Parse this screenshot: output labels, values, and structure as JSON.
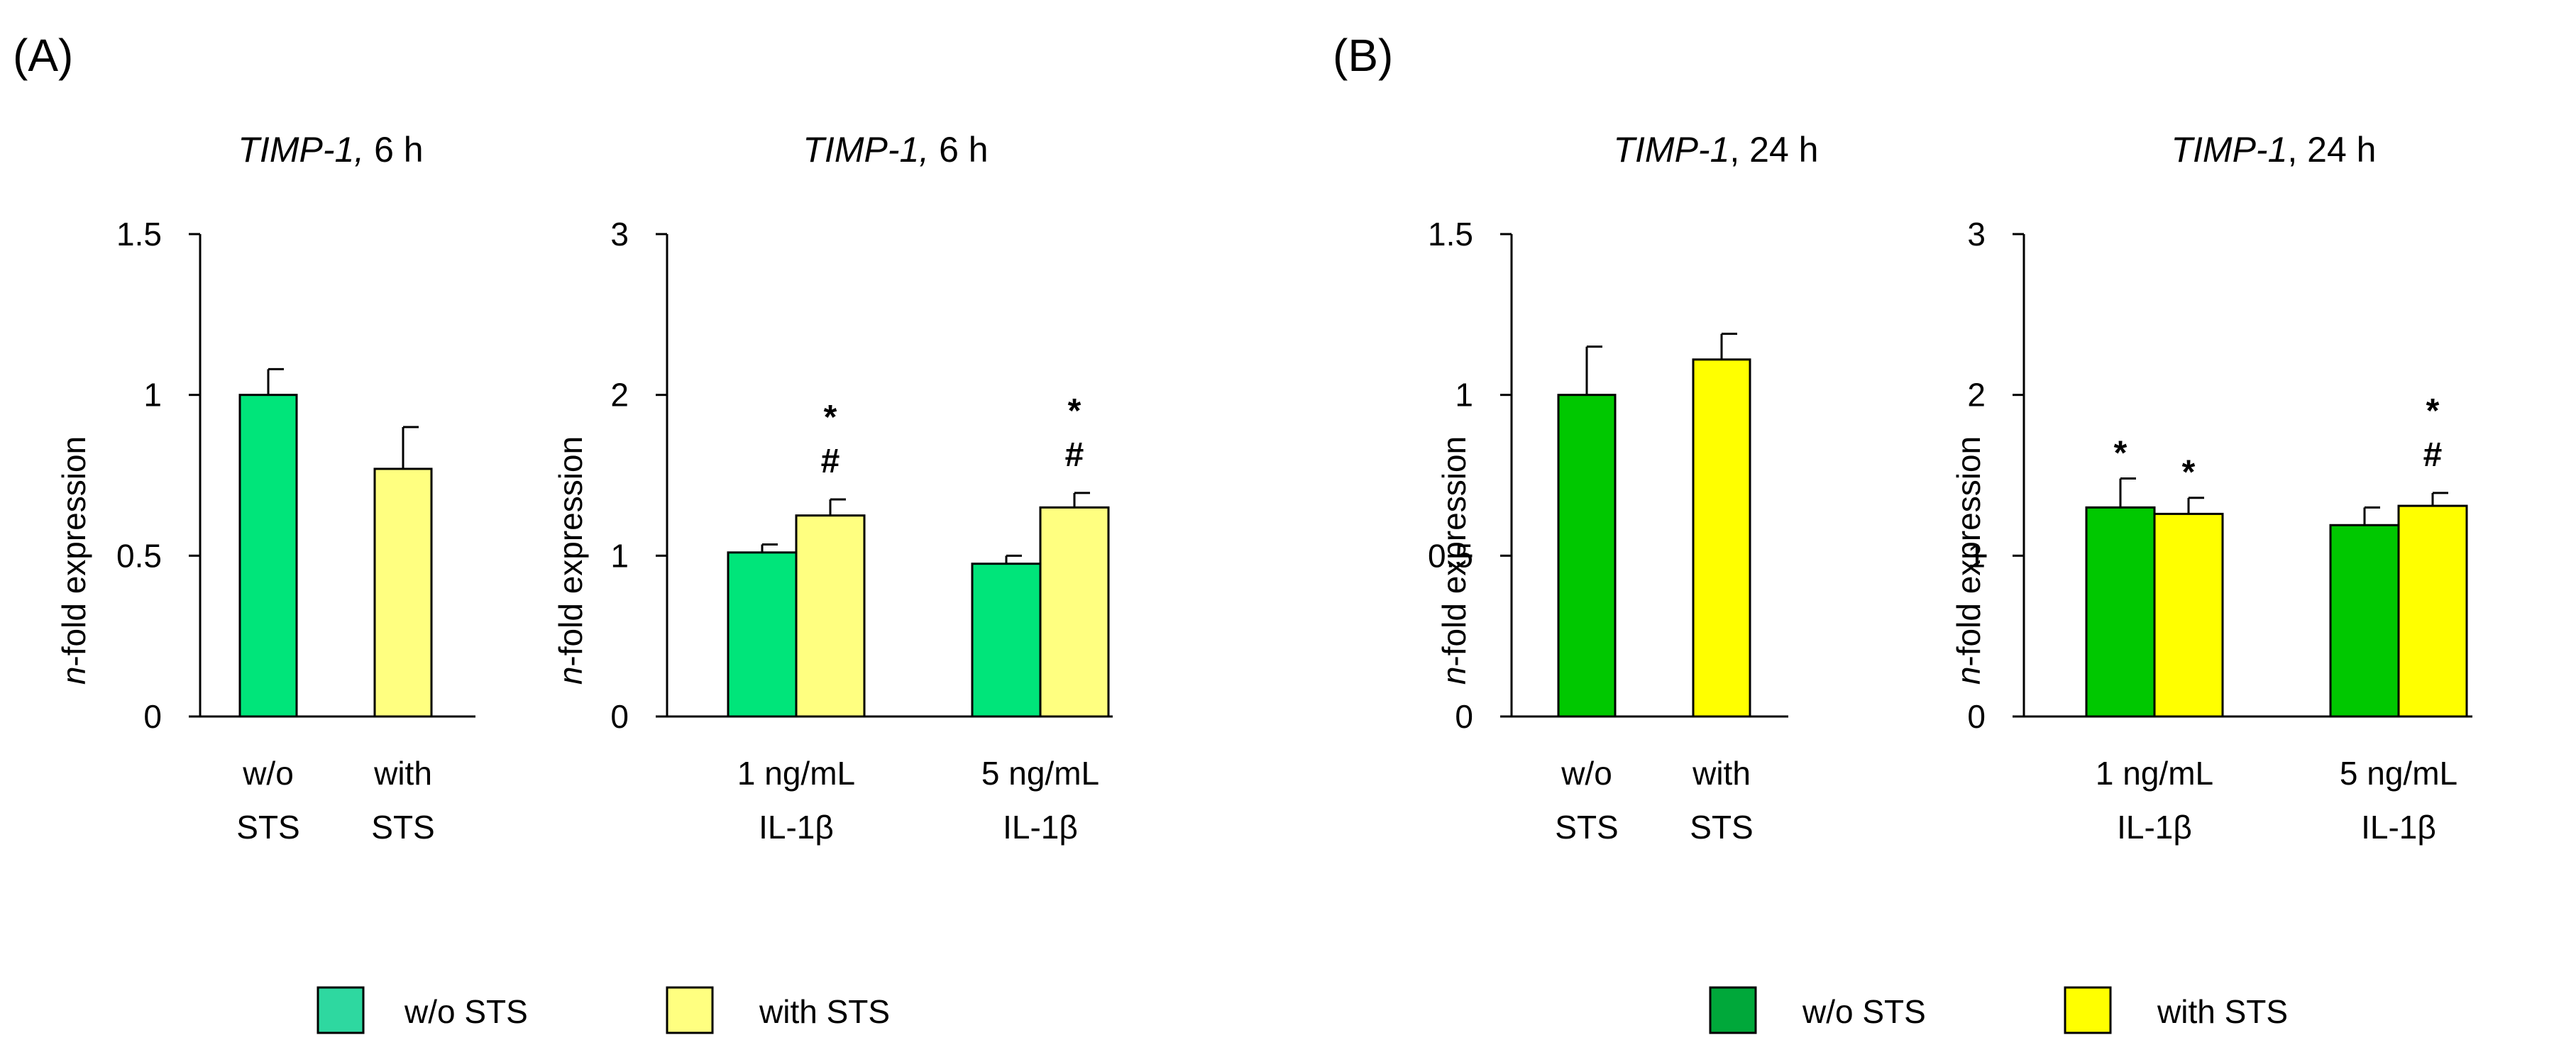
{
  "colors": {
    "A_wo": "#00E57A",
    "A_with": "#FFFF80",
    "B_wo": "#00C800",
    "B_with": "#FFFF00",
    "A_legend_wo": "#2ED8A0",
    "B_legend_wo": "#00A83A"
  },
  "panels": [
    {
      "label": "(A)"
    },
    {
      "label": "(B)"
    }
  ],
  "legends": [
    {
      "items": [
        {
          "label": "w/o STS",
          "color_key": "A_legend_wo"
        },
        {
          "label": "with STS",
          "color_key": "A_with"
        }
      ]
    },
    {
      "items": [
        {
          "label": "w/o STS",
          "color_key": "B_legend_wo"
        },
        {
          "label": "with STS",
          "color_key": "B_with"
        }
      ]
    }
  ],
  "chart_data": [
    {
      "type": "bar",
      "title_gene": "TIMP-1,",
      "title_time": "6 h",
      "ylabel_italic": "n",
      "ylabel_rest": "-fold expression",
      "ylim": [
        0,
        1.5
      ],
      "yticks": [
        "0",
        "0.5",
        "1",
        "1.5"
      ],
      "categories": [
        {
          "line1": "w/o",
          "line2": "STS"
        },
        {
          "line1": "with",
          "line2": "STS"
        }
      ],
      "series": [
        {
          "name": "w/o STS",
          "color_key": "A_wo",
          "values": [
            1.0,
            null
          ],
          "errors": [
            0.08,
            null
          ],
          "marks": [
            [],
            []
          ]
        },
        {
          "name": "with STS",
          "color_key": "A_with",
          "values": [
            null,
            0.77
          ],
          "errors": [
            null,
            0.13
          ],
          "marks": [
            [],
            []
          ]
        }
      ]
    },
    {
      "type": "bar",
      "title_gene": "TIMP-1,",
      "title_time": "6 h",
      "ylabel_italic": "n",
      "ylabel_rest": "-fold expression",
      "ylim": [
        0,
        3
      ],
      "yticks": [
        "0",
        "1",
        "2",
        "3"
      ],
      "categories": [
        {
          "line1": "1 ng/mL",
          "line2": "IL-1β"
        },
        {
          "line1": "5 ng/mL",
          "line2": "IL-1β"
        }
      ],
      "series": [
        {
          "name": "w/o STS",
          "color_key": "A_wo",
          "values": [
            1.02,
            0.95
          ],
          "errors": [
            0.05,
            0.05
          ],
          "marks": [
            [],
            []
          ]
        },
        {
          "name": "with STS",
          "color_key": "A_with",
          "values": [
            1.25,
            1.3
          ],
          "errors": [
            0.1,
            0.09
          ],
          "marks": [
            [
              "#",
              "*"
            ],
            [
              "#",
              "*"
            ]
          ]
        }
      ]
    },
    {
      "type": "bar",
      "title_gene": "TIMP-1",
      "title_time": ", 24 h",
      "ylabel_italic": "n",
      "ylabel_rest": "-fold expression",
      "ylim": [
        0,
        1.5
      ],
      "yticks": [
        "0",
        "0.5",
        "1",
        "1.5"
      ],
      "categories": [
        {
          "line1": "w/o",
          "line2": "STS"
        },
        {
          "line1": "with",
          "line2": "STS"
        }
      ],
      "series": [
        {
          "name": "w/o STS",
          "color_key": "B_wo",
          "values": [
            1.0,
            null
          ],
          "errors": [
            0.15,
            null
          ],
          "marks": [
            [],
            []
          ]
        },
        {
          "name": "with STS",
          "color_key": "B_with",
          "values": [
            null,
            1.11
          ],
          "errors": [
            null,
            0.08
          ],
          "marks": [
            [],
            []
          ]
        }
      ]
    },
    {
      "type": "bar",
      "title_gene": "TIMP-1",
      "title_time": ", 24 h",
      "ylabel_italic": "n",
      "ylabel_rest": "-fold expression",
      "ylim": [
        0,
        3
      ],
      "yticks": [
        "0",
        "1",
        "2",
        "3"
      ],
      "categories": [
        {
          "line1": "1 ng/mL",
          "line2": "IL-1β"
        },
        {
          "line1": "5 ng/mL",
          "line2": "IL-1β"
        }
      ],
      "series": [
        {
          "name": "w/o STS",
          "color_key": "B_wo",
          "values": [
            1.3,
            1.19
          ],
          "errors": [
            0.18,
            0.11
          ],
          "marks": [
            [
              "*"
            ],
            []
          ]
        },
        {
          "name": "with STS",
          "color_key": "B_with",
          "values": [
            1.26,
            1.31
          ],
          "errors": [
            0.1,
            0.08
          ],
          "marks": [
            [
              "*"
            ],
            [
              "#",
              "*"
            ]
          ]
        }
      ]
    }
  ]
}
